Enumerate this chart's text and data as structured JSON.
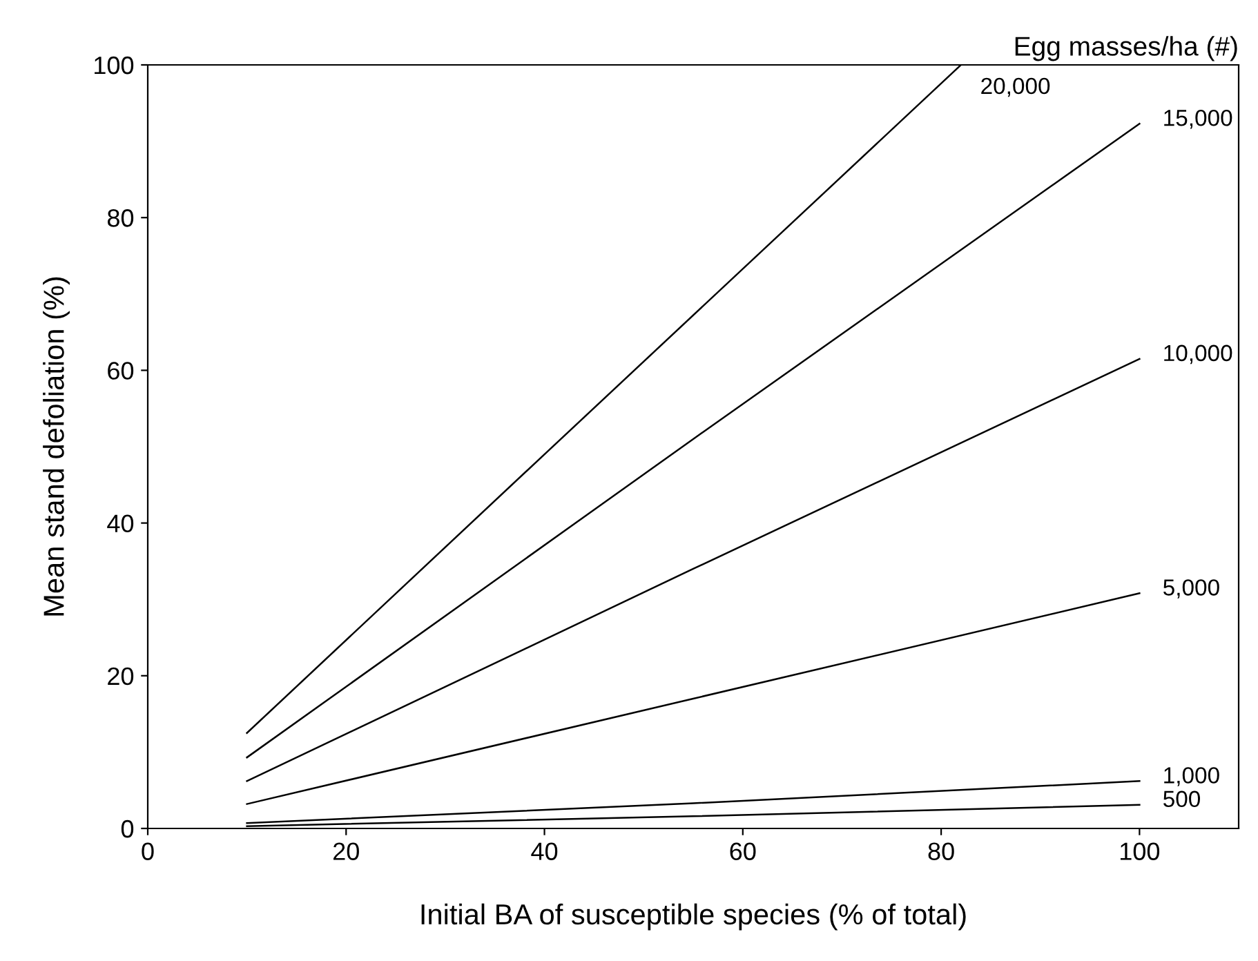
{
  "chart_data": {
    "type": "line",
    "xlabel": "Initial BA of susceptible species (% of total)",
    "ylabel": "Mean stand defoliation (%)",
    "legend_title": "Egg masses/ha (#)",
    "series": [
      {
        "name": "20,000",
        "color": "#000000",
        "x": [
          10,
          40,
          82
        ],
        "values": [
          12.5,
          49,
          100
        ]
      },
      {
        "name": "15,000",
        "color": "#000000",
        "x": [
          10,
          55,
          100
        ],
        "values": [
          9.3,
          51,
          92.3
        ]
      },
      {
        "name": "10,000",
        "color": "#000000",
        "x": [
          10,
          55,
          100
        ],
        "values": [
          6.2,
          34,
          61.5
        ]
      },
      {
        "name": "5,000",
        "color": "#000000",
        "x": [
          10,
          55,
          100
        ],
        "values": [
          3.2,
          17,
          30.8
        ]
      },
      {
        "name": "1,000",
        "color": "#000000",
        "x": [
          10,
          55,
          100
        ],
        "values": [
          0.7,
          3.3,
          6.2
        ]
      },
      {
        "name": "500",
        "color": "#000000",
        "x": [
          10,
          55,
          100
        ],
        "values": [
          0.3,
          1.6,
          3.1
        ]
      }
    ],
    "xlim": [
      0,
      110
    ],
    "xticks": [
      0,
      20,
      40,
      60,
      80,
      100
    ],
    "ylim": [
      0,
      100
    ],
    "yticks": [
      0,
      20,
      40,
      60,
      80,
      100
    ],
    "grid": false,
    "marker": "none",
    "line_style": "solid"
  }
}
